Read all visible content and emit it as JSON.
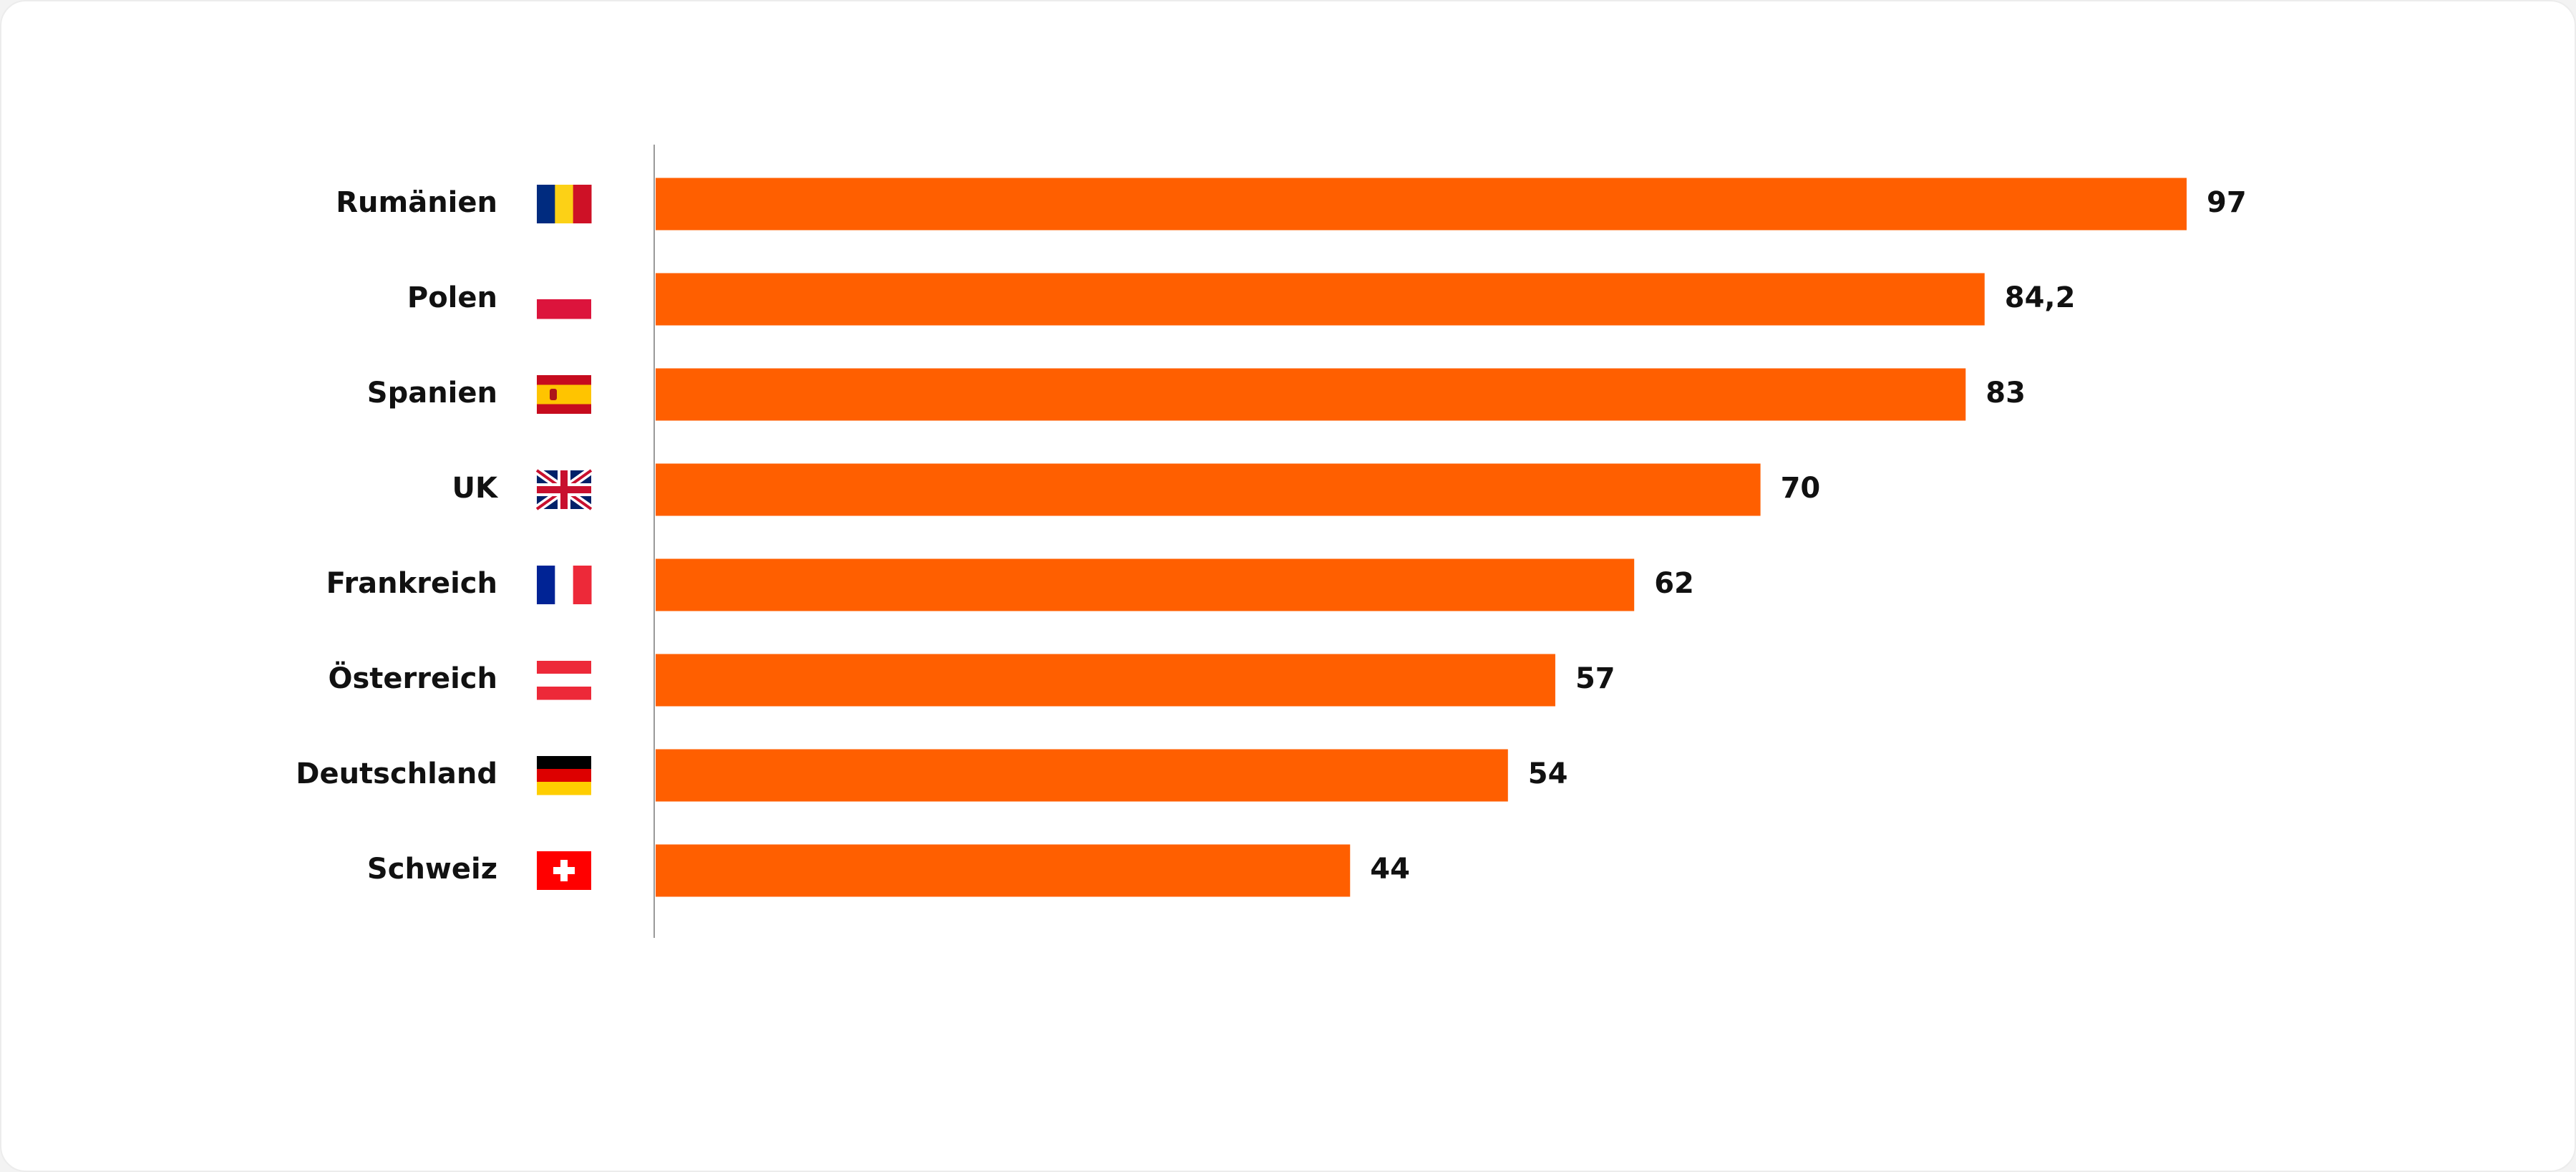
{
  "chart_data": {
    "type": "bar",
    "orientation": "horizontal",
    "categories": [
      "Rumänien",
      "Polen",
      "Spanien",
      "UK",
      "Frankreich",
      "Österreich",
      "Deutschland",
      "Schweiz"
    ],
    "values": [
      97,
      84.2,
      83,
      70,
      62,
      57,
      54,
      44
    ],
    "value_labels": [
      "97",
      "84,2",
      "83",
      "70",
      "62",
      "57",
      "54",
      "44"
    ],
    "color": "#ff5f00"
  }
}
